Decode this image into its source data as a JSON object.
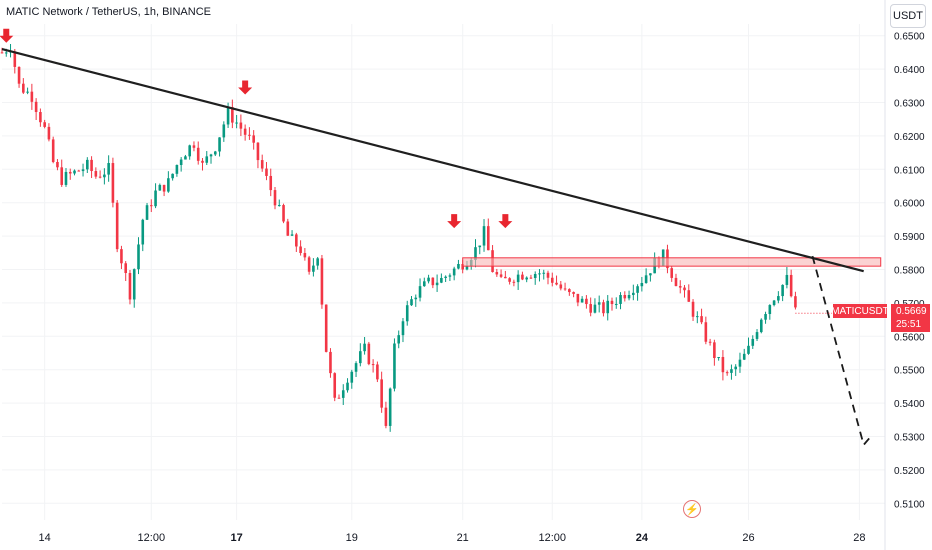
{
  "header": {
    "title": "MATIC Network / TetherUS, 1h, BINANCE",
    "currency_button": "USDT"
  },
  "price_tag": {
    "symbol": "MATICUSDT",
    "price": "0.5669",
    "countdown": "25:51",
    "color": "#f23645"
  },
  "event_icon": "lightning-icon",
  "colors": {
    "up": "#089981",
    "down": "#f23645",
    "trendline": "#1f1f1f",
    "zone": "#f8b4b4"
  },
  "chart_data": {
    "type": "candlestick",
    "y_tick_labels": [
      "0.6500",
      "0.6400",
      "0.6300",
      "0.6200",
      "0.6100",
      "0.6000",
      "0.5900",
      "0.5800",
      "0.5700",
      "0.5600",
      "0.5500",
      "0.5400",
      "0.5300",
      "0.5200",
      "0.5100"
    ],
    "x_tick_labels": [
      "14",
      "12:00",
      "17",
      "19",
      "21",
      "12:00",
      "24",
      "26",
      "28"
    ],
    "ylim": [
      0.505,
      0.6535
    ],
    "xlim_bars": [
      0,
      207
    ],
    "series_close_path": [
      [
        0,
        0.645
      ],
      [
        2,
        0.647
      ],
      [
        4,
        0.635
      ],
      [
        7,
        0.632
      ],
      [
        10,
        0.622
      ],
      [
        12,
        0.612
      ],
      [
        14,
        0.607
      ],
      [
        17,
        0.609
      ],
      [
        20,
        0.611
      ],
      [
        22,
        0.608
      ],
      [
        25,
        0.61
      ],
      [
        27,
        0.588
      ],
      [
        30,
        0.573
      ],
      [
        33,
        0.595
      ],
      [
        36,
        0.603
      ],
      [
        39,
        0.606
      ],
      [
        42,
        0.614
      ],
      [
        45,
        0.618
      ],
      [
        47,
        0.611
      ],
      [
        50,
        0.617
      ],
      [
        53,
        0.627
      ],
      [
        55,
        0.624
      ],
      [
        58,
        0.619
      ],
      [
        61,
        0.61
      ],
      [
        64,
        0.601
      ],
      [
        67,
        0.59
      ],
      [
        70,
        0.586
      ],
      [
        72,
        0.578
      ],
      [
        74,
        0.585
      ],
      [
        76,
        0.556
      ],
      [
        78,
        0.54
      ],
      [
        81,
        0.548
      ],
      [
        85,
        0.556
      ],
      [
        88,
        0.548
      ],
      [
        90,
        0.532
      ],
      [
        92,
        0.556
      ],
      [
        94,
        0.566
      ],
      [
        97,
        0.573
      ],
      [
        100,
        0.576
      ],
      [
        103,
        0.577
      ],
      [
        106,
        0.58
      ],
      [
        109,
        0.583
      ],
      [
        111,
        0.586
      ],
      [
        113,
        0.591
      ],
      [
        115,
        0.58
      ],
      [
        117,
        0.576
      ],
      [
        120,
        0.578
      ],
      [
        123,
        0.579
      ],
      [
        126,
        0.579
      ],
      [
        129,
        0.577
      ],
      [
        132,
        0.573
      ],
      [
        135,
        0.571
      ],
      [
        138,
        0.569
      ],
      [
        141,
        0.568
      ],
      [
        144,
        0.571
      ],
      [
        147,
        0.574
      ],
      [
        150,
        0.577
      ],
      [
        153,
        0.582
      ],
      [
        155,
        0.584
      ],
      [
        157,
        0.579
      ],
      [
        160,
        0.572
      ],
      [
        163,
        0.565
      ],
      [
        166,
        0.557
      ],
      [
        168,
        0.552
      ],
      [
        170,
        0.548
      ],
      [
        173,
        0.552
      ],
      [
        175,
        0.556
      ],
      [
        178,
        0.566
      ],
      [
        181,
        0.572
      ],
      [
        184,
        0.577
      ],
      [
        186,
        0.567
      ]
    ],
    "marked_swing_highs_bar": [
      1,
      57,
      106,
      118
    ],
    "trendline": {
      "from": [
        0,
        0.646
      ],
      "to": [
        202,
        0.5795
      ]
    },
    "resistance_zone": [
      0.581,
      0.5835
    ],
    "projection": {
      "points": [
        [
          190,
          0.584
        ],
        [
          202,
          0.5275
        ],
        [
          204,
          0.5305
        ]
      ],
      "style": "dashed"
    }
  }
}
